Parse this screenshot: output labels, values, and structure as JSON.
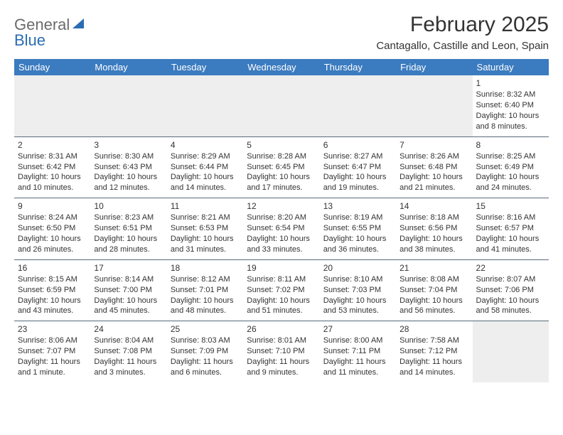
{
  "brand": {
    "word1": "General",
    "word2": "Blue",
    "word1_color": "#6b6b6b",
    "word2_color": "#2a6db4",
    "sail_color": "#2a6db4"
  },
  "title": "February 2025",
  "location": "Cantagallo, Castille and Leon, Spain",
  "colors": {
    "header_bg": "#3b7bbf",
    "header_text": "#ffffff",
    "cell_border": "#5a6a7a",
    "empty_bg": "#eeeeee",
    "text": "#333333",
    "page_bg": "#ffffff"
  },
  "fonts": {
    "title_size_pt": 22,
    "subtitle_size_pt": 11,
    "header_size_pt": 10,
    "cell_size_pt": 8
  },
  "day_headers": [
    "Sunday",
    "Monday",
    "Tuesday",
    "Wednesday",
    "Thursday",
    "Friday",
    "Saturday"
  ],
  "weeks": [
    [
      null,
      null,
      null,
      null,
      null,
      null,
      {
        "n": "1",
        "sunrise": "Sunrise: 8:32 AM",
        "sunset": "Sunset: 6:40 PM",
        "daylight1": "Daylight: 10 hours",
        "daylight2": "and 8 minutes."
      }
    ],
    [
      {
        "n": "2",
        "sunrise": "Sunrise: 8:31 AM",
        "sunset": "Sunset: 6:42 PM",
        "daylight1": "Daylight: 10 hours",
        "daylight2": "and 10 minutes."
      },
      {
        "n": "3",
        "sunrise": "Sunrise: 8:30 AM",
        "sunset": "Sunset: 6:43 PM",
        "daylight1": "Daylight: 10 hours",
        "daylight2": "and 12 minutes."
      },
      {
        "n": "4",
        "sunrise": "Sunrise: 8:29 AM",
        "sunset": "Sunset: 6:44 PM",
        "daylight1": "Daylight: 10 hours",
        "daylight2": "and 14 minutes."
      },
      {
        "n": "5",
        "sunrise": "Sunrise: 8:28 AM",
        "sunset": "Sunset: 6:45 PM",
        "daylight1": "Daylight: 10 hours",
        "daylight2": "and 17 minutes."
      },
      {
        "n": "6",
        "sunrise": "Sunrise: 8:27 AM",
        "sunset": "Sunset: 6:47 PM",
        "daylight1": "Daylight: 10 hours",
        "daylight2": "and 19 minutes."
      },
      {
        "n": "7",
        "sunrise": "Sunrise: 8:26 AM",
        "sunset": "Sunset: 6:48 PM",
        "daylight1": "Daylight: 10 hours",
        "daylight2": "and 21 minutes."
      },
      {
        "n": "8",
        "sunrise": "Sunrise: 8:25 AM",
        "sunset": "Sunset: 6:49 PM",
        "daylight1": "Daylight: 10 hours",
        "daylight2": "and 24 minutes."
      }
    ],
    [
      {
        "n": "9",
        "sunrise": "Sunrise: 8:24 AM",
        "sunset": "Sunset: 6:50 PM",
        "daylight1": "Daylight: 10 hours",
        "daylight2": "and 26 minutes."
      },
      {
        "n": "10",
        "sunrise": "Sunrise: 8:23 AM",
        "sunset": "Sunset: 6:51 PM",
        "daylight1": "Daylight: 10 hours",
        "daylight2": "and 28 minutes."
      },
      {
        "n": "11",
        "sunrise": "Sunrise: 8:21 AM",
        "sunset": "Sunset: 6:53 PM",
        "daylight1": "Daylight: 10 hours",
        "daylight2": "and 31 minutes."
      },
      {
        "n": "12",
        "sunrise": "Sunrise: 8:20 AM",
        "sunset": "Sunset: 6:54 PM",
        "daylight1": "Daylight: 10 hours",
        "daylight2": "and 33 minutes."
      },
      {
        "n": "13",
        "sunrise": "Sunrise: 8:19 AM",
        "sunset": "Sunset: 6:55 PM",
        "daylight1": "Daylight: 10 hours",
        "daylight2": "and 36 minutes."
      },
      {
        "n": "14",
        "sunrise": "Sunrise: 8:18 AM",
        "sunset": "Sunset: 6:56 PM",
        "daylight1": "Daylight: 10 hours",
        "daylight2": "and 38 minutes."
      },
      {
        "n": "15",
        "sunrise": "Sunrise: 8:16 AM",
        "sunset": "Sunset: 6:57 PM",
        "daylight1": "Daylight: 10 hours",
        "daylight2": "and 41 minutes."
      }
    ],
    [
      {
        "n": "16",
        "sunrise": "Sunrise: 8:15 AM",
        "sunset": "Sunset: 6:59 PM",
        "daylight1": "Daylight: 10 hours",
        "daylight2": "and 43 minutes."
      },
      {
        "n": "17",
        "sunrise": "Sunrise: 8:14 AM",
        "sunset": "Sunset: 7:00 PM",
        "daylight1": "Daylight: 10 hours",
        "daylight2": "and 45 minutes."
      },
      {
        "n": "18",
        "sunrise": "Sunrise: 8:12 AM",
        "sunset": "Sunset: 7:01 PM",
        "daylight1": "Daylight: 10 hours",
        "daylight2": "and 48 minutes."
      },
      {
        "n": "19",
        "sunrise": "Sunrise: 8:11 AM",
        "sunset": "Sunset: 7:02 PM",
        "daylight1": "Daylight: 10 hours",
        "daylight2": "and 51 minutes."
      },
      {
        "n": "20",
        "sunrise": "Sunrise: 8:10 AM",
        "sunset": "Sunset: 7:03 PM",
        "daylight1": "Daylight: 10 hours",
        "daylight2": "and 53 minutes."
      },
      {
        "n": "21",
        "sunrise": "Sunrise: 8:08 AM",
        "sunset": "Sunset: 7:04 PM",
        "daylight1": "Daylight: 10 hours",
        "daylight2": "and 56 minutes."
      },
      {
        "n": "22",
        "sunrise": "Sunrise: 8:07 AM",
        "sunset": "Sunset: 7:06 PM",
        "daylight1": "Daylight: 10 hours",
        "daylight2": "and 58 minutes."
      }
    ],
    [
      {
        "n": "23",
        "sunrise": "Sunrise: 8:06 AM",
        "sunset": "Sunset: 7:07 PM",
        "daylight1": "Daylight: 11 hours",
        "daylight2": "and 1 minute."
      },
      {
        "n": "24",
        "sunrise": "Sunrise: 8:04 AM",
        "sunset": "Sunset: 7:08 PM",
        "daylight1": "Daylight: 11 hours",
        "daylight2": "and 3 minutes."
      },
      {
        "n": "25",
        "sunrise": "Sunrise: 8:03 AM",
        "sunset": "Sunset: 7:09 PM",
        "daylight1": "Daylight: 11 hours",
        "daylight2": "and 6 minutes."
      },
      {
        "n": "26",
        "sunrise": "Sunrise: 8:01 AM",
        "sunset": "Sunset: 7:10 PM",
        "daylight1": "Daylight: 11 hours",
        "daylight2": "and 9 minutes."
      },
      {
        "n": "27",
        "sunrise": "Sunrise: 8:00 AM",
        "sunset": "Sunset: 7:11 PM",
        "daylight1": "Daylight: 11 hours",
        "daylight2": "and 11 minutes."
      },
      {
        "n": "28",
        "sunrise": "Sunrise: 7:58 AM",
        "sunset": "Sunset: 7:12 PM",
        "daylight1": "Daylight: 11 hours",
        "daylight2": "and 14 minutes."
      },
      null
    ]
  ]
}
